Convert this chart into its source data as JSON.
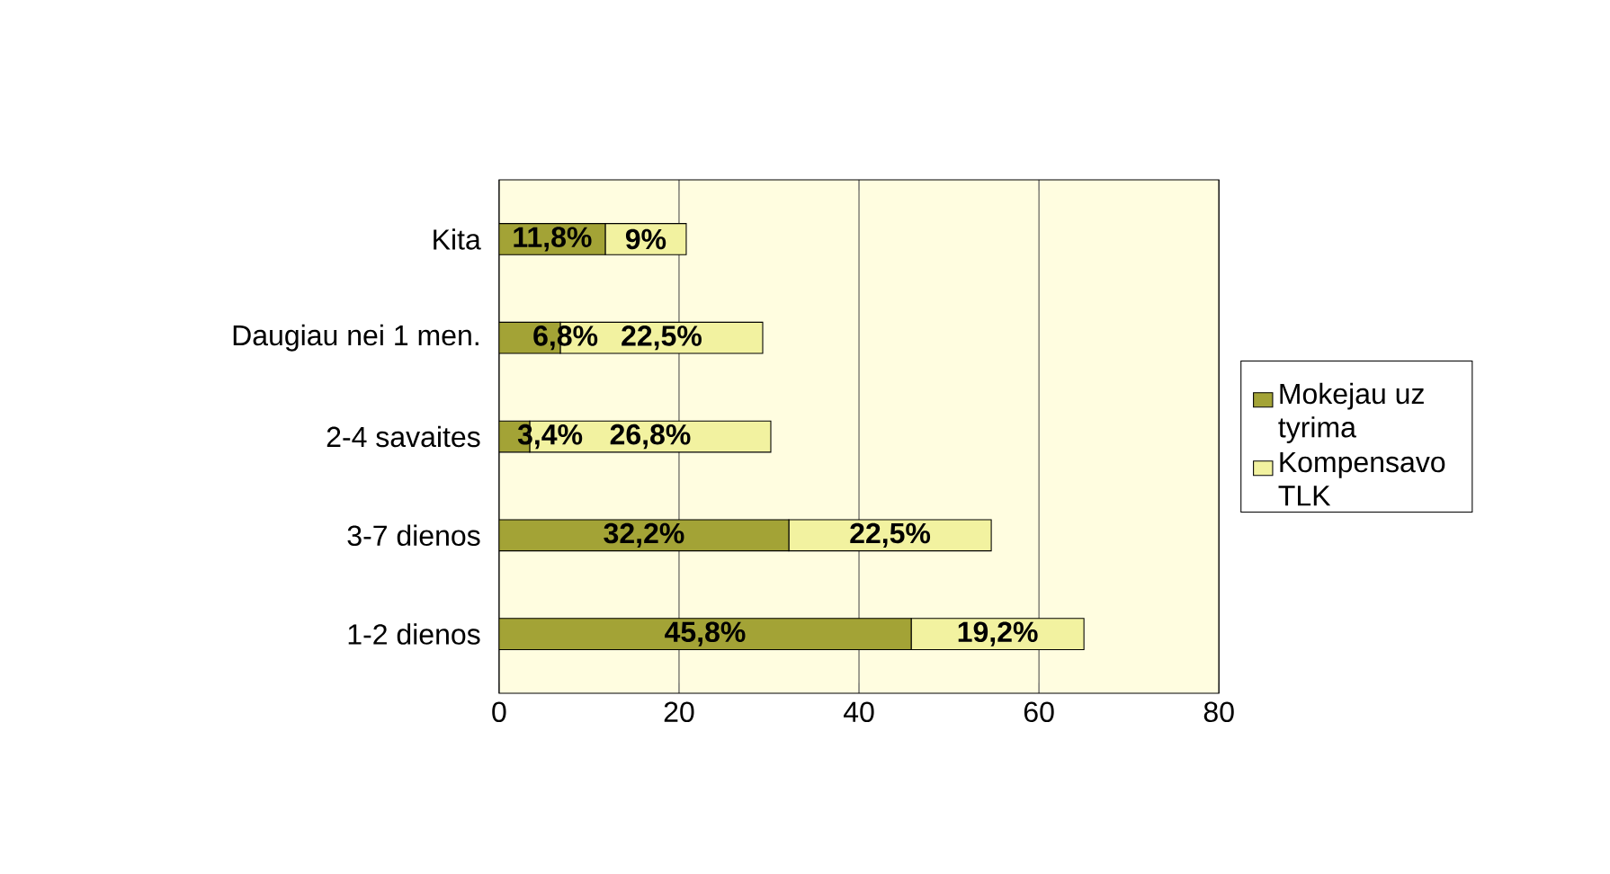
{
  "chart_data": {
    "type": "bar",
    "orientation": "horizontal",
    "stacked": true,
    "categories": [
      "Kita",
      "Daugiau nei 1 men.",
      "2-4 savaites",
      "3-7 dienos",
      "1-2 dienos"
    ],
    "series": [
      {
        "name": "Mokejau uz tyrima",
        "color": "#a3a336",
        "values": [
          11.8,
          6.8,
          3.4,
          32.2,
          45.8
        ],
        "value_labels": [
          "11,8%",
          "6,8%",
          "3,4%",
          "32,2%",
          "45,8%"
        ]
      },
      {
        "name": "Kompensavo TLK",
        "color": "#f2f2a0",
        "values": [
          9,
          22.5,
          26.8,
          22.5,
          19.2
        ],
        "value_labels": [
          "9%",
          "22,5%",
          "26,8%",
          "22,5%",
          "19,2%"
        ]
      }
    ],
    "xlim": [
      0,
      80
    ],
    "xticks": [
      0,
      20,
      40,
      60,
      80
    ],
    "grid": "x",
    "legend": "right"
  }
}
